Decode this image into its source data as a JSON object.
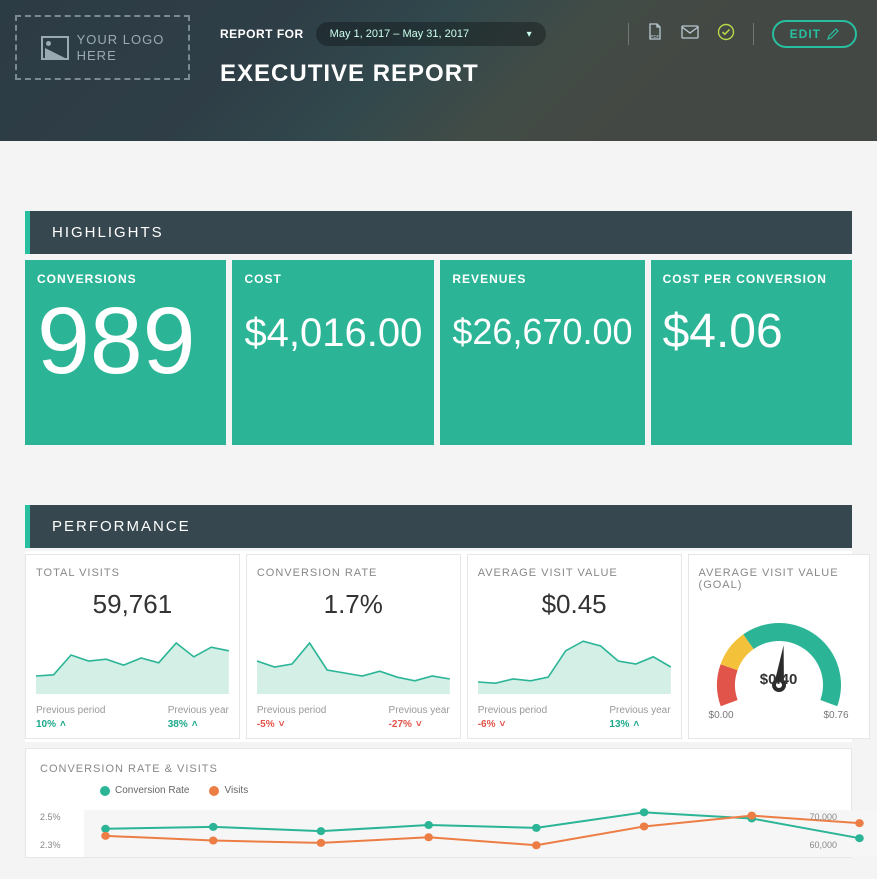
{
  "colors": {
    "teal": "#2bb596",
    "teal_dark": "#27a88a",
    "header_bg": "#37474f",
    "red": "#e0544a",
    "yellow": "#f3c13a",
    "orange": "#ec7e45",
    "spark_stroke": "#2bb596",
    "spark_fill": "#c0e8dc"
  },
  "header": {
    "logo_line1": "YOUR LOGO",
    "logo_line2": "HERE",
    "report_for_label": "REPORT FOR",
    "date_range": "May 1, 2017 – May 31, 2017",
    "page_title": "EXECUTIVE REPORT",
    "edit_label": "EDIT"
  },
  "highlights": {
    "title": "HIGHLIGHTS",
    "cards": [
      {
        "label": "CONVERSIONS",
        "value": "989"
      },
      {
        "label": "COST",
        "value": "$4,016.00"
      },
      {
        "label": "REVENUES",
        "value": "$26,670.00"
      },
      {
        "label": "COST PER CONVERSION",
        "value": "$4.06"
      }
    ]
  },
  "performance": {
    "title": "PERFORMANCE",
    "cards": [
      {
        "label": "TOTAL VISITS",
        "value": "59,761",
        "spark": [
          0.3,
          0.32,
          0.65,
          0.55,
          0.58,
          0.48,
          0.6,
          0.52,
          0.85,
          0.62,
          0.78,
          0.72
        ],
        "prev_period_label": "Previous period",
        "prev_period_val": "10%",
        "prev_period_dir": "up",
        "prev_year_label": "Previous year",
        "prev_year_val": "38%",
        "prev_year_dir": "up"
      },
      {
        "label": "CONVERSION RATE",
        "value": "1.7%",
        "spark": [
          0.55,
          0.45,
          0.5,
          0.85,
          0.4,
          0.35,
          0.3,
          0.38,
          0.28,
          0.22,
          0.3,
          0.25
        ],
        "prev_period_label": "Previous period",
        "prev_period_val": "-5%",
        "prev_period_dir": "down",
        "prev_year_label": "Previous year",
        "prev_year_val": "-27%",
        "prev_year_dir": "down"
      },
      {
        "label": "AVERAGE VISIT VALUE",
        "value": "$0.45",
        "spark": [
          0.2,
          0.18,
          0.25,
          0.22,
          0.28,
          0.72,
          0.88,
          0.8,
          0.55,
          0.5,
          0.62,
          0.45
        ],
        "prev_period_label": "Previous period",
        "prev_period_val": "-6%",
        "prev_period_dir": "down",
        "prev_year_label": "Previous year",
        "prev_year_val": "13%",
        "prev_year_dir": "up"
      }
    ],
    "gauge": {
      "label": "AVERAGE VISIT VALUE (GOAL)",
      "min": "$0.00",
      "max": "$0.76",
      "value": "$0.40",
      "fraction": 0.53,
      "segments": [
        {
          "color": "#e0544a",
          "start": 0.0,
          "end": 0.18
        },
        {
          "color": "#f3c13a",
          "start": 0.18,
          "end": 0.34
        },
        {
          "color": "#2bb596",
          "start": 0.34,
          "end": 1.0
        }
      ]
    }
  },
  "combo": {
    "title": "CONVERSION RATE & VISITS",
    "legend": [
      {
        "label": "Conversion Rate",
        "color": "#2bb596"
      },
      {
        "label": "Visits",
        "color": "#ec7e45"
      }
    ],
    "left_ticks": [
      "2.5%",
      "2.3%"
    ],
    "right_ticks": [
      "70,000",
      "60,000"
    ],
    "plot_bg": "#f6f6f6",
    "series1_y": [
      0.6,
      0.64,
      0.55,
      0.68,
      0.62,
      0.95,
      0.82,
      0.4
    ],
    "series2_y": [
      0.45,
      0.35,
      0.3,
      0.42,
      0.25,
      0.65,
      0.88,
      0.72
    ]
  }
}
